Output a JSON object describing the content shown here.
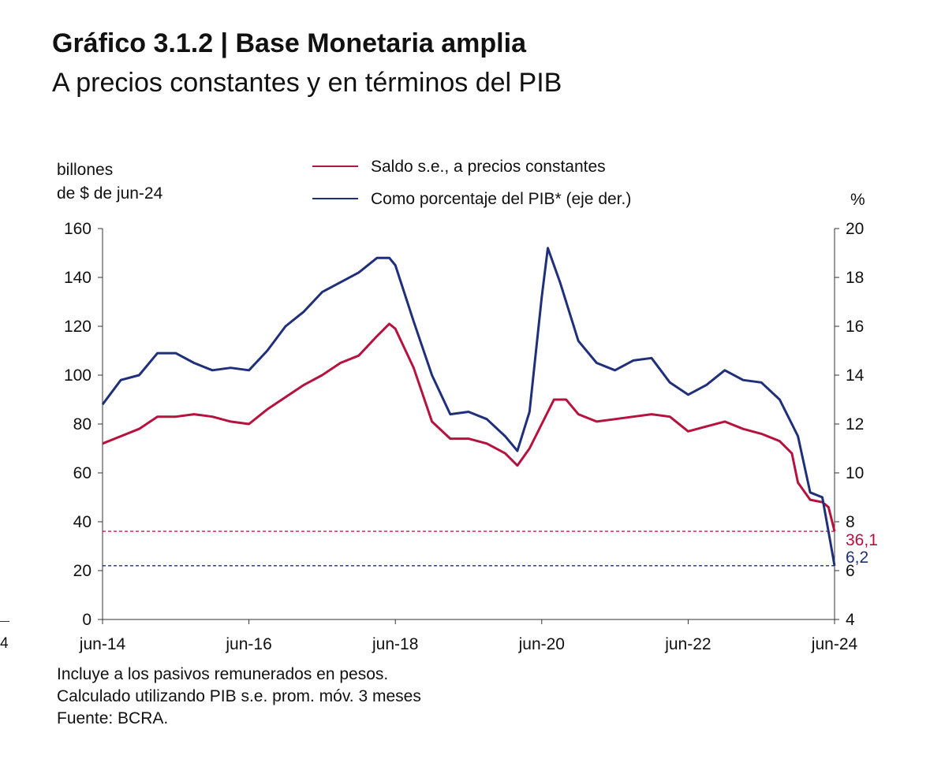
{
  "title": "Gráfico 3.1.2 | Base Monetaria amplia",
  "subtitle": "A precios constantes y en términos del PIB",
  "edge_fragment": "4",
  "chart_data": {
    "type": "line",
    "left_axis_label_1": "billones",
    "left_axis_label_2": "de $ de jun-24",
    "right_axis_label": "%",
    "ylim_left": [
      0,
      160
    ],
    "ylim_right": [
      4,
      20
    ],
    "y_ticks_left": [
      "0",
      "20",
      "40",
      "60",
      "80",
      "100",
      "120",
      "140",
      "160"
    ],
    "y_ticks_right": [
      "4",
      "6",
      "8",
      "10",
      "12",
      "14",
      "16",
      "18",
      "20"
    ],
    "x_ticks": [
      "jun-14",
      "jun-16",
      "jun-18",
      "jun-20",
      "jun-22",
      "jun-24"
    ],
    "x_start": "2014-06",
    "x_end": "2024-06",
    "series": [
      {
        "name": "Saldo s.e., a precios constantes",
        "axis": "left",
        "color": "#b5123e",
        "points": [
          [
            "2014-06",
            72
          ],
          [
            "2014-09",
            75
          ],
          [
            "2014-12",
            78
          ],
          [
            "2015-03",
            83
          ],
          [
            "2015-06",
            83
          ],
          [
            "2015-09",
            84
          ],
          [
            "2015-12",
            83
          ],
          [
            "2016-03",
            81
          ],
          [
            "2016-06",
            80
          ],
          [
            "2016-09",
            86
          ],
          [
            "2016-12",
            91
          ],
          [
            "2017-03",
            96
          ],
          [
            "2017-06",
            100
          ],
          [
            "2017-09",
            105
          ],
          [
            "2017-12",
            108
          ],
          [
            "2018-03",
            116
          ],
          [
            "2018-05",
            121
          ],
          [
            "2018-06",
            119
          ],
          [
            "2018-09",
            103
          ],
          [
            "2018-12",
            81
          ],
          [
            "2019-03",
            74
          ],
          [
            "2019-06",
            74
          ],
          [
            "2019-09",
            72
          ],
          [
            "2019-12",
            68
          ],
          [
            "2020-02",
            63
          ],
          [
            "2020-04",
            70
          ],
          [
            "2020-06",
            80
          ],
          [
            "2020-08",
            90
          ],
          [
            "2020-10",
            90
          ],
          [
            "2020-12",
            84
          ],
          [
            "2021-03",
            81
          ],
          [
            "2021-06",
            82
          ],
          [
            "2021-09",
            83
          ],
          [
            "2021-12",
            84
          ],
          [
            "2022-03",
            83
          ],
          [
            "2022-06",
            77
          ],
          [
            "2022-09",
            79
          ],
          [
            "2022-12",
            81
          ],
          [
            "2023-03",
            78
          ],
          [
            "2023-06",
            76
          ],
          [
            "2023-09",
            73
          ],
          [
            "2023-11",
            68
          ],
          [
            "2023-12",
            56
          ],
          [
            "2024-02",
            49
          ],
          [
            "2024-04",
            48
          ],
          [
            "2024-05",
            46
          ],
          [
            "2024-06",
            36.1
          ]
        ]
      },
      {
        "name": "Como porcentaje del PIB* (eje der.)",
        "axis": "right",
        "color": "#1f2f7a",
        "points": [
          [
            "2014-06",
            12.8
          ],
          [
            "2014-09",
            13.8
          ],
          [
            "2014-12",
            14.0
          ],
          [
            "2015-03",
            14.9
          ],
          [
            "2015-06",
            14.9
          ],
          [
            "2015-09",
            14.5
          ],
          [
            "2015-12",
            14.2
          ],
          [
            "2016-03",
            14.3
          ],
          [
            "2016-06",
            14.2
          ],
          [
            "2016-09",
            15.0
          ],
          [
            "2016-12",
            16.0
          ],
          [
            "2017-03",
            16.6
          ],
          [
            "2017-06",
            17.4
          ],
          [
            "2017-09",
            17.8
          ],
          [
            "2017-12",
            18.2
          ],
          [
            "2018-03",
            18.8
          ],
          [
            "2018-05",
            18.8
          ],
          [
            "2018-06",
            18.5
          ],
          [
            "2018-09",
            16.2
          ],
          [
            "2018-12",
            14.0
          ],
          [
            "2019-03",
            12.4
          ],
          [
            "2019-06",
            12.5
          ],
          [
            "2019-09",
            12.2
          ],
          [
            "2019-12",
            11.5
          ],
          [
            "2020-02",
            10.9
          ],
          [
            "2020-04",
            12.5
          ],
          [
            "2020-06",
            17.2
          ],
          [
            "2020-07",
            19.2
          ],
          [
            "2020-09",
            17.8
          ],
          [
            "2020-12",
            15.4
          ],
          [
            "2021-03",
            14.5
          ],
          [
            "2021-06",
            14.2
          ],
          [
            "2021-09",
            14.6
          ],
          [
            "2021-12",
            14.7
          ],
          [
            "2022-03",
            13.7
          ],
          [
            "2022-06",
            13.2
          ],
          [
            "2022-09",
            13.6
          ],
          [
            "2022-12",
            14.2
          ],
          [
            "2023-03",
            13.8
          ],
          [
            "2023-06",
            13.7
          ],
          [
            "2023-09",
            13.0
          ],
          [
            "2023-11",
            12.0
          ],
          [
            "2023-12",
            11.5
          ],
          [
            "2024-02",
            9.2
          ],
          [
            "2024-04",
            9.0
          ],
          [
            "2024-05",
            7.6
          ],
          [
            "2024-06",
            6.2
          ]
        ]
      }
    ],
    "reference_lines": [
      {
        "axis": "left",
        "value": 36.1,
        "label": "36,1",
        "color": "#b5123e"
      },
      {
        "axis": "right",
        "value": 6.2,
        "label": "6,2",
        "color": "#1f2f7a"
      }
    ]
  },
  "notes": [
    "Incluye a los pasivos remunerados en pesos.",
    "Calculado utilizando PIB s.e. prom. móv. 3 meses",
    "Fuente: BCRA."
  ]
}
